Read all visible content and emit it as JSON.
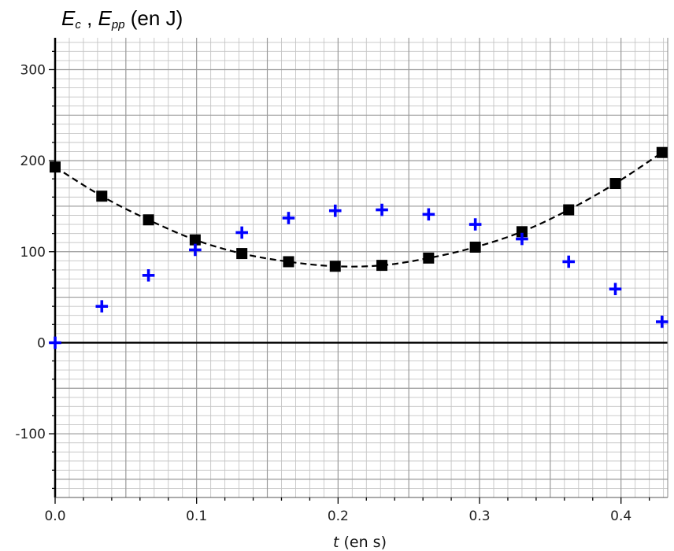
{
  "chart_data": {
    "type": "scatter",
    "title": {
      "e1": "E",
      "s1": "c",
      "sep": " , ",
      "e2": "E",
      "s2": "pp",
      "unit": " (en J)"
    },
    "xlabel": {
      "var": "t",
      "unit": " (en s)"
    },
    "xlim": [
      0,
      0.433
    ],
    "ylim": [
      -170,
      335
    ],
    "x_ticks": [
      "0.0",
      "0.1",
      "0.2",
      "0.3",
      "0.4"
    ],
    "x_tick_values": [
      0,
      0.1,
      0.2,
      0.3,
      0.4
    ],
    "y_ticks": [
      "-100",
      "0",
      "100",
      "200",
      "300"
    ],
    "y_tick_values": [
      -100,
      0,
      100,
      200,
      300
    ],
    "grid": true,
    "series": [
      {
        "marker": "square",
        "color": "#000000",
        "x": [
          0.0,
          0.033,
          0.066,
          0.099,
          0.132,
          0.165,
          0.198,
          0.231,
          0.264,
          0.297,
          0.33,
          0.363,
          0.396,
          0.429
        ],
        "y": [
          193,
          161,
          135,
          113,
          98,
          89,
          84,
          85,
          93,
          105,
          122,
          146,
          175,
          209
        ]
      },
      {
        "marker": "plus",
        "color": "#0000ff",
        "x": [
          0.0,
          0.033,
          0.066,
          0.099,
          0.132,
          0.165,
          0.198,
          0.231,
          0.264,
          0.297,
          0.33,
          0.363,
          0.396,
          0.429
        ],
        "y": [
          0,
          40,
          74,
          102,
          121,
          137,
          145,
          146,
          141,
          130,
          114,
          89,
          59,
          23
        ]
      }
    ],
    "fit_curve": {
      "style": "dashed",
      "color": "#000000",
      "x": [
        0.0,
        0.033,
        0.066,
        0.099,
        0.132,
        0.165,
        0.198,
        0.231,
        0.264,
        0.297,
        0.33,
        0.363,
        0.396,
        0.429
      ],
      "y": [
        193,
        161,
        135,
        113,
        98,
        89,
        84,
        85,
        93,
        105,
        122,
        146,
        175,
        209
      ]
    }
  }
}
